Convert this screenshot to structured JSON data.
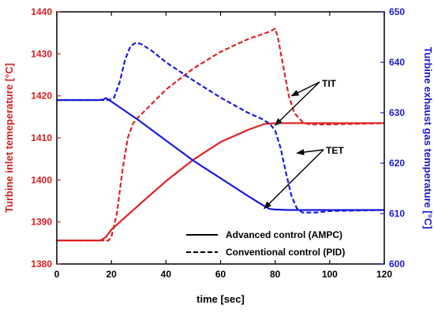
{
  "chart_data": {
    "type": "line",
    "xlabel": "time [sec]",
    "ylabel_left": "Turbine inlet temeperature [°C]",
    "ylabel_right": "Turbine exhaust gas temperature [°C]",
    "xlim": [
      0,
      120
    ],
    "ylim_left": [
      1380,
      1440
    ],
    "ylim_right": [
      600,
      650
    ],
    "x_ticks": [
      "0",
      "20",
      "40",
      "60",
      "80",
      "100",
      "120"
    ],
    "y_left_ticks": [
      "1380",
      "1390",
      "1400",
      "1410",
      "1420",
      "1430",
      "1440"
    ],
    "y_right_ticks": [
      "600",
      "610",
      "620",
      "630",
      "640",
      "650"
    ],
    "grid": false,
    "colors": {
      "left_axis": "#d42020",
      "right_axis": "#1a1ad4",
      "tit": "#dd2222",
      "tet": "#1a1add"
    },
    "legend": {
      "placement": "bottom-right",
      "entries": [
        {
          "label": "Advanced control (AMPC)",
          "style": "solid"
        },
        {
          "label": "Conventional control (PID)",
          "style": "dashed"
        }
      ]
    },
    "annotations": [
      {
        "text": "TIT",
        "targets": [
          [
            86,
            1420
          ],
          [
            80,
            1413
          ]
        ]
      },
      {
        "text": "TET",
        "targets": [
          [
            88,
            622
          ],
          [
            76,
            611
          ]
        ]
      }
    ],
    "series": [
      {
        "name": "Advanced control (AMPC)",
        "quantity": "TIT",
        "axis": "left",
        "style": "solid",
        "x": [
          0,
          16,
          18,
          20,
          30,
          40,
          50,
          60,
          70,
          76,
          78,
          80,
          90,
          100,
          120
        ],
        "y": [
          1385.6,
          1385.6,
          1386.4,
          1388.2,
          1394.0,
          1399.7,
          1404.8,
          1409.0,
          1411.9,
          1413.3,
          1413.4,
          1413.5,
          1413.5,
          1413.5,
          1413.5
        ]
      },
      {
        "name": "Conventional control (PID)",
        "quantity": "TIT",
        "axis": "left",
        "style": "dashed",
        "x": [
          0,
          19,
          20,
          22,
          24,
          26,
          28,
          30,
          40,
          50,
          60,
          70,
          78,
          80,
          81,
          83,
          85,
          87,
          89,
          90,
          92,
          95,
          100,
          120
        ],
        "y": [
          1385.6,
          1385.6,
          1386.5,
          1392.0,
          1402.0,
          1410.0,
          1413.5,
          1415.0,
          1421.5,
          1426.5,
          1430.5,
          1433.5,
          1435.3,
          1436.0,
          1434.0,
          1427.0,
          1420.0,
          1416.0,
          1414.5,
          1413.8,
          1413.3,
          1413.2,
          1413.2,
          1413.5
        ]
      },
      {
        "name": "Advanced control (AMPC)",
        "quantity": "TET",
        "axis": "right",
        "style": "solid",
        "x": [
          0,
          15,
          17,
          18,
          20,
          30,
          40,
          50,
          60,
          70,
          76,
          78,
          80,
          85,
          90,
          120
        ],
        "y": [
          632.5,
          632.5,
          632.6,
          632.9,
          632.2,
          628.5,
          624.5,
          620.5,
          617.0,
          613.5,
          611.5,
          610.9,
          610.8,
          610.7,
          610.7,
          610.7
        ]
      },
      {
        "name": "Conventional control (PID)",
        "quantity": "TET",
        "axis": "right",
        "style": "dashed",
        "x": [
          0,
          19,
          21,
          23,
          25,
          27,
          29,
          31,
          35,
          40,
          50,
          60,
          70,
          75,
          78,
          80,
          82,
          84,
          86,
          88,
          90,
          95,
          100,
          120
        ],
        "y": [
          632.5,
          632.5,
          633.0,
          636.0,
          640.5,
          643.2,
          643.9,
          643.6,
          642.2,
          640.0,
          636.4,
          633.0,
          630.0,
          628.8,
          627.8,
          626.5,
          623.0,
          618.0,
          613.5,
          611.0,
          610.2,
          610.2,
          610.5,
          610.7
        ]
      }
    ]
  }
}
